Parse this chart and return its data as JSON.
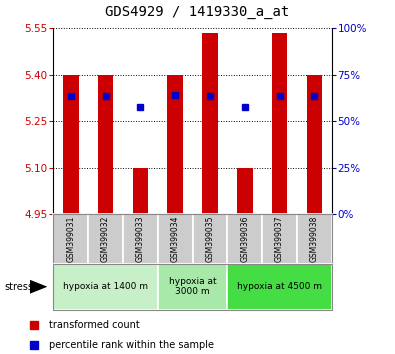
{
  "title": "GDS4929 / 1419330_a_at",
  "samples": [
    "GSM399031",
    "GSM399032",
    "GSM399033",
    "GSM399034",
    "GSM399035",
    "GSM399036",
    "GSM399037",
    "GSM399038"
  ],
  "bar_tops": [
    5.4,
    5.4,
    5.1,
    5.4,
    5.535,
    5.1,
    5.535,
    5.4
  ],
  "bar_bottom": 4.95,
  "blue_dot_values": [
    5.33,
    5.33,
    5.295,
    5.335,
    5.33,
    5.295,
    5.33,
    5.33
  ],
  "ylim": [
    4.95,
    5.55
  ],
  "yticks_left": [
    4.95,
    5.1,
    5.25,
    5.4,
    5.55
  ],
  "yticks_right_pct": [
    0,
    25,
    50,
    75,
    100
  ],
  "bar_color": "#cc0000",
  "dot_color": "#0000cc",
  "groups": [
    {
      "label": "hypoxia at 1400 m",
      "start": 0,
      "end": 3,
      "color": "#c8f0c8"
    },
    {
      "label": "hypoxia at\n3000 m",
      "start": 3,
      "end": 5,
      "color": "#a8e8a8"
    },
    {
      "label": "hypoxia at 4500 m",
      "start": 5,
      "end": 8,
      "color": "#44dd44"
    }
  ],
  "sample_bg_color": "#cccccc",
  "sample_border_color": "#888888",
  "plot_bg": "#ffffff",
  "bar_width": 0.45,
  "dot_size": 4,
  "title_fontsize": 10,
  "tick_fontsize": 7.5,
  "sample_fontsize": 5.5,
  "group_fontsize": 6.5,
  "legend_fontsize": 7,
  "stress_fontsize": 7
}
